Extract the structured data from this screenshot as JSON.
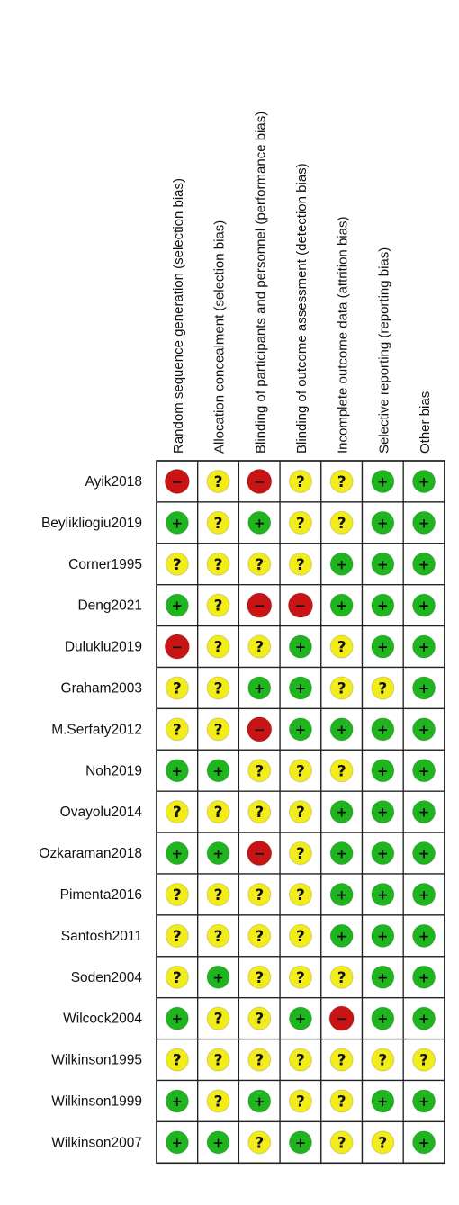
{
  "chart_data": {
    "type": "table",
    "columns": [
      "Random sequence generation (selection bias)",
      "Allocation concealment (selection bias)",
      "Blinding of participants and personnel (performance bias)",
      "Blinding of outcome assessment (detection bias)",
      "Incomplete outcome data (attrition bias)",
      "Selective reporting (reporting bias)",
      "Other bias"
    ],
    "rows": [
      {
        "study": "Ayik2018",
        "ratings": [
          "high",
          "unclear",
          "high",
          "unclear",
          "unclear",
          "low",
          "low"
        ]
      },
      {
        "study": "Beylikliogiu2019",
        "ratings": [
          "low",
          "unclear",
          "low",
          "unclear",
          "unclear",
          "low",
          "low"
        ]
      },
      {
        "study": "Corner1995",
        "ratings": [
          "unclear",
          "unclear",
          "unclear",
          "unclear",
          "low",
          "low",
          "low"
        ]
      },
      {
        "study": "Deng2021",
        "ratings": [
          "low",
          "unclear",
          "high",
          "high",
          "low",
          "low",
          "low"
        ]
      },
      {
        "study": "Duluklu2019",
        "ratings": [
          "high",
          "unclear",
          "unclear",
          "low",
          "unclear",
          "low",
          "low"
        ]
      },
      {
        "study": "Graham2003",
        "ratings": [
          "unclear",
          "unclear",
          "low",
          "low",
          "unclear",
          "unclear",
          "low"
        ]
      },
      {
        "study": "M.Serfaty2012",
        "ratings": [
          "unclear",
          "unclear",
          "high",
          "low",
          "low",
          "low",
          "low"
        ]
      },
      {
        "study": "Noh2019",
        "ratings": [
          "low",
          "low",
          "unclear",
          "unclear",
          "unclear",
          "low",
          "low"
        ]
      },
      {
        "study": "Ovayolu2014",
        "ratings": [
          "unclear",
          "unclear",
          "unclear",
          "unclear",
          "low",
          "low",
          "low"
        ]
      },
      {
        "study": "Ozkaraman2018",
        "ratings": [
          "low",
          "low",
          "high",
          "unclear",
          "low",
          "low",
          "low"
        ]
      },
      {
        "study": "Pimenta2016",
        "ratings": [
          "unclear",
          "unclear",
          "unclear",
          "unclear",
          "low",
          "low",
          "low"
        ]
      },
      {
        "study": "Santosh2011",
        "ratings": [
          "unclear",
          "unclear",
          "unclear",
          "unclear",
          "low",
          "low",
          "low"
        ]
      },
      {
        "study": "Soden2004",
        "ratings": [
          "unclear",
          "low",
          "unclear",
          "unclear",
          "unclear",
          "low",
          "low"
        ]
      },
      {
        "study": "Wilcock2004",
        "ratings": [
          "low",
          "unclear",
          "unclear",
          "low",
          "high",
          "low",
          "low"
        ]
      },
      {
        "study": "Wilkinson1995",
        "ratings": [
          "unclear",
          "unclear",
          "unclear",
          "unclear",
          "unclear",
          "unclear",
          "unclear"
        ]
      },
      {
        "study": "Wilkinson1999",
        "ratings": [
          "low",
          "unclear",
          "low",
          "unclear",
          "unclear",
          "low",
          "low"
        ]
      },
      {
        "study": "Wilkinson2007",
        "ratings": [
          "low",
          "low",
          "unclear",
          "low",
          "unclear",
          "unclear",
          "low"
        ]
      }
    ],
    "symbols": {
      "low": "+",
      "unclear": "?",
      "high": "−"
    }
  },
  "colors": {
    "low": "#1fb51f",
    "unclear": "#f2ec1a",
    "high": "#c81414",
    "grid": "#222222"
  }
}
